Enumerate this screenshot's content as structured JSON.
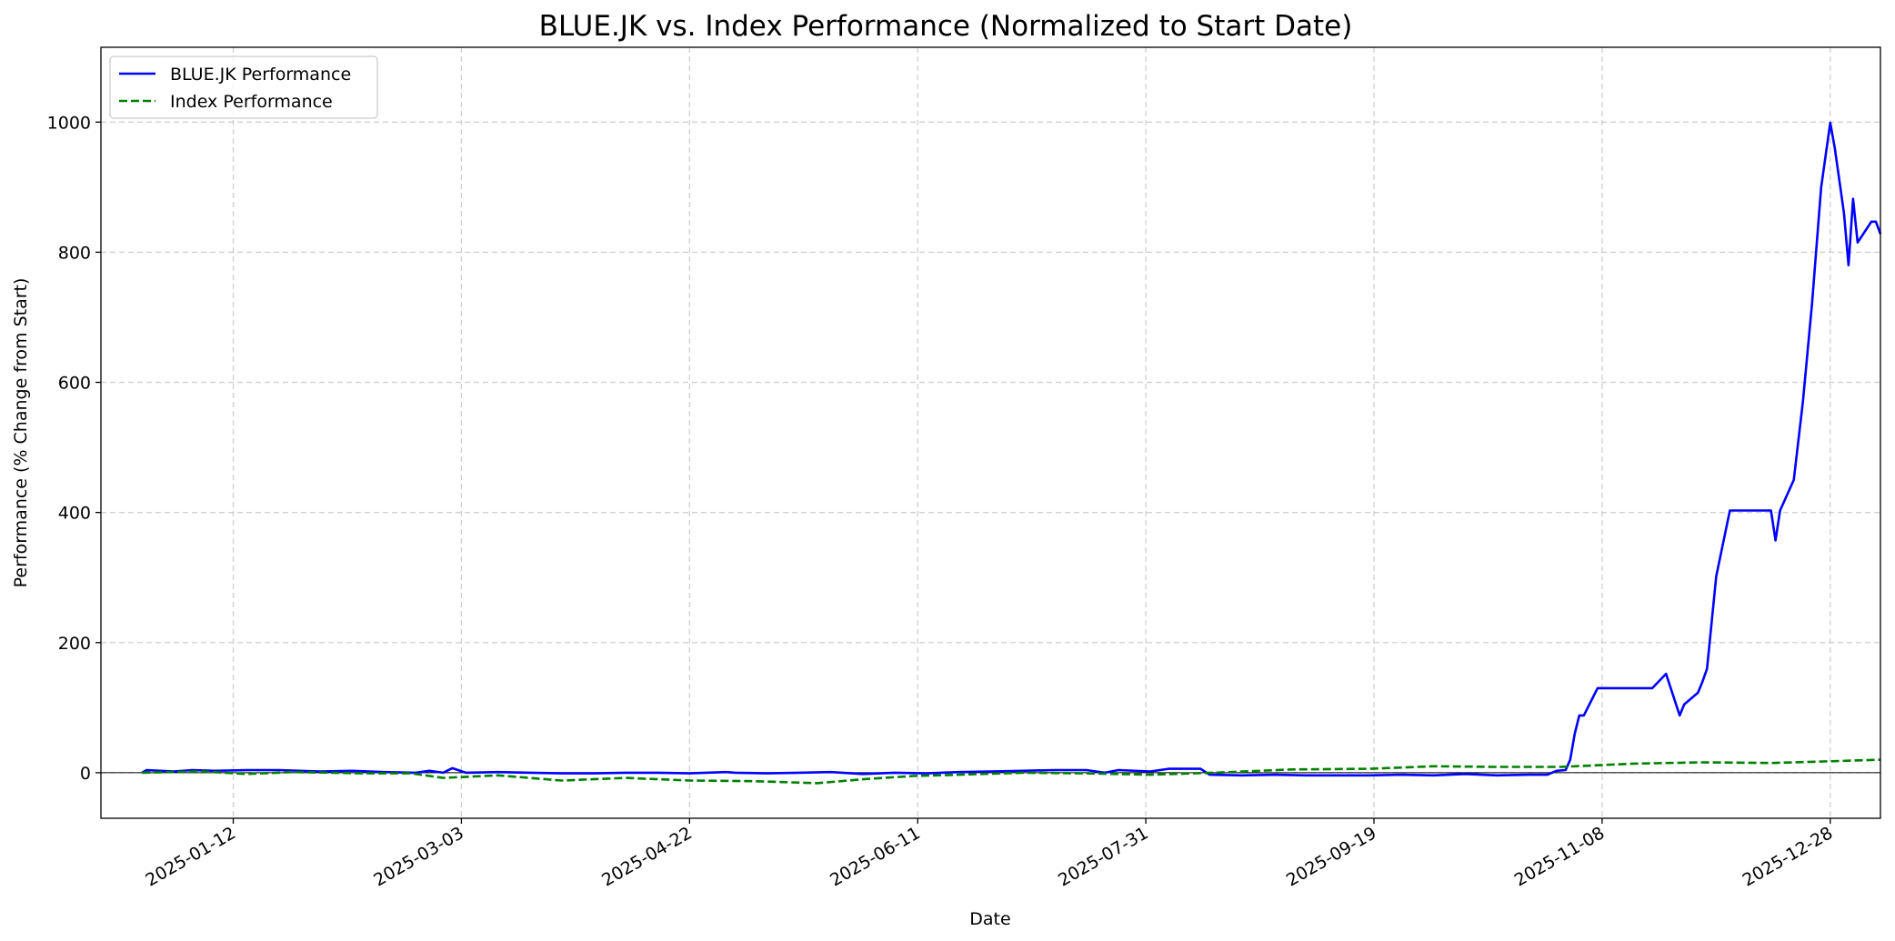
{
  "chart_data": {
    "type": "line",
    "title": "BLUE.JK vs. Index Performance (Normalized to Start Date)",
    "xlabel": "Date",
    "ylabel": "Performance (% Change from Start)",
    "xlim": [
      "2024-12-14",
      "2026-01-08"
    ],
    "ylim": [
      -70,
      1115
    ],
    "x_ticks": [
      "2025-01-12",
      "2025-03-03",
      "2025-04-22",
      "2025-06-11",
      "2025-07-31",
      "2025-09-19",
      "2025-11-08",
      "2025-12-28"
    ],
    "y_ticks": [
      0,
      200,
      400,
      600,
      800,
      1000
    ],
    "grid": true,
    "legend_position": "upper-left",
    "reference_line": 0,
    "series": [
      {
        "name": "BLUE.JK Performance",
        "color": "#0000ff",
        "style": "solid",
        "points": [
          [
            "2024-12-23",
            0
          ],
          [
            "2024-12-24",
            4
          ],
          [
            "2024-12-27",
            3
          ],
          [
            "2024-12-30",
            2
          ],
          [
            "2025-01-03",
            4
          ],
          [
            "2025-01-08",
            3
          ],
          [
            "2025-01-15",
            4
          ],
          [
            "2025-01-22",
            4
          ],
          [
            "2025-01-31",
            2
          ],
          [
            "2025-02-07",
            3
          ],
          [
            "2025-02-14",
            1
          ],
          [
            "2025-02-21",
            0
          ],
          [
            "2025-02-24",
            3
          ],
          [
            "2025-02-27",
            0
          ],
          [
            "2025-03-01",
            7
          ],
          [
            "2025-03-04",
            0
          ],
          [
            "2025-03-11",
            1
          ],
          [
            "2025-03-18",
            0
          ],
          [
            "2025-03-25",
            -1
          ],
          [
            "2025-04-01",
            -1
          ],
          [
            "2025-04-08",
            0
          ],
          [
            "2025-04-15",
            0
          ],
          [
            "2025-04-22",
            -1
          ],
          [
            "2025-04-30",
            1
          ],
          [
            "2025-05-02",
            0
          ],
          [
            "2025-05-09",
            -1
          ],
          [
            "2025-05-16",
            0
          ],
          [
            "2025-05-23",
            1
          ],
          [
            "2025-05-30",
            -2
          ],
          [
            "2025-06-06",
            0
          ],
          [
            "2025-06-13",
            -1
          ],
          [
            "2025-06-20",
            1
          ],
          [
            "2025-06-27",
            2
          ],
          [
            "2025-07-04",
            3
          ],
          [
            "2025-07-11",
            4
          ],
          [
            "2025-07-18",
            4
          ],
          [
            "2025-07-22",
            0
          ],
          [
            "2025-07-25",
            4
          ],
          [
            "2025-08-01",
            2
          ],
          [
            "2025-08-05",
            6
          ],
          [
            "2025-08-12",
            6
          ],
          [
            "2025-08-14",
            -3
          ],
          [
            "2025-08-21",
            -4
          ],
          [
            "2025-08-28",
            -3
          ],
          [
            "2025-09-04",
            -4
          ],
          [
            "2025-09-11",
            -4
          ],
          [
            "2025-09-18",
            -4
          ],
          [
            "2025-09-25",
            -3
          ],
          [
            "2025-10-02",
            -4
          ],
          [
            "2025-10-09",
            -2
          ],
          [
            "2025-10-16",
            -4
          ],
          [
            "2025-10-23",
            -3
          ],
          [
            "2025-10-27",
            -3
          ],
          [
            "2025-10-29",
            3
          ],
          [
            "2025-10-31",
            4
          ],
          [
            "2025-11-01",
            20
          ],
          [
            "2025-11-02",
            60
          ],
          [
            "2025-11-03",
            88
          ],
          [
            "2025-11-04",
            88
          ],
          [
            "2025-11-07",
            130
          ],
          [
            "2025-11-19",
            130
          ],
          [
            "2025-11-22",
            152
          ],
          [
            "2025-11-25",
            88
          ],
          [
            "2025-11-26",
            105
          ],
          [
            "2025-11-29",
            123
          ],
          [
            "2025-11-30",
            140
          ],
          [
            "2025-12-01",
            160
          ],
          [
            "2025-12-03",
            302
          ],
          [
            "2025-12-06",
            403
          ],
          [
            "2025-12-15",
            403
          ],
          [
            "2025-12-16",
            357
          ],
          [
            "2025-12-17",
            403
          ],
          [
            "2025-12-20",
            450
          ],
          [
            "2025-12-22",
            570
          ],
          [
            "2025-12-24",
            720
          ],
          [
            "2025-12-26",
            900
          ],
          [
            "2025-12-28",
            999
          ],
          [
            "2025-12-29",
            960
          ],
          [
            "2025-12-31",
            860
          ],
          [
            "2026-01-01",
            780
          ],
          [
            "2026-01-02",
            882
          ],
          [
            "2026-01-03",
            815
          ],
          [
            "2026-01-06",
            847
          ],
          [
            "2026-01-07",
            847
          ],
          [
            "2026-01-08",
            828
          ]
        ]
      },
      {
        "name": "Index Performance",
        "color": "#008000",
        "style": "dashed",
        "points": [
          [
            "2024-12-23",
            0
          ],
          [
            "2025-01-05",
            2
          ],
          [
            "2025-01-15",
            -2
          ],
          [
            "2025-01-25",
            1
          ],
          [
            "2025-02-10",
            -1
          ],
          [
            "2025-02-20",
            -1
          ],
          [
            "2025-02-27",
            -8
          ],
          [
            "2025-03-11",
            -4
          ],
          [
            "2025-03-25",
            -12
          ],
          [
            "2025-04-08",
            -8
          ],
          [
            "2025-04-22",
            -12
          ],
          [
            "2025-05-06",
            -13
          ],
          [
            "2025-05-20",
            -16
          ],
          [
            "2025-05-30",
            -10
          ],
          [
            "2025-06-10",
            -5
          ],
          [
            "2025-06-20",
            -3
          ],
          [
            "2025-07-04",
            0
          ],
          [
            "2025-07-18",
            -1
          ],
          [
            "2025-08-01",
            -3
          ],
          [
            "2025-08-15",
            0
          ],
          [
            "2025-09-01",
            5
          ],
          [
            "2025-09-18",
            6
          ],
          [
            "2025-10-02",
            10
          ],
          [
            "2025-10-16",
            9
          ],
          [
            "2025-10-30",
            9
          ],
          [
            "2025-11-15",
            14
          ],
          [
            "2025-11-30",
            16
          ],
          [
            "2025-12-15",
            15
          ],
          [
            "2025-12-30",
            18
          ],
          [
            "2026-01-08",
            20
          ]
        ]
      }
    ]
  }
}
